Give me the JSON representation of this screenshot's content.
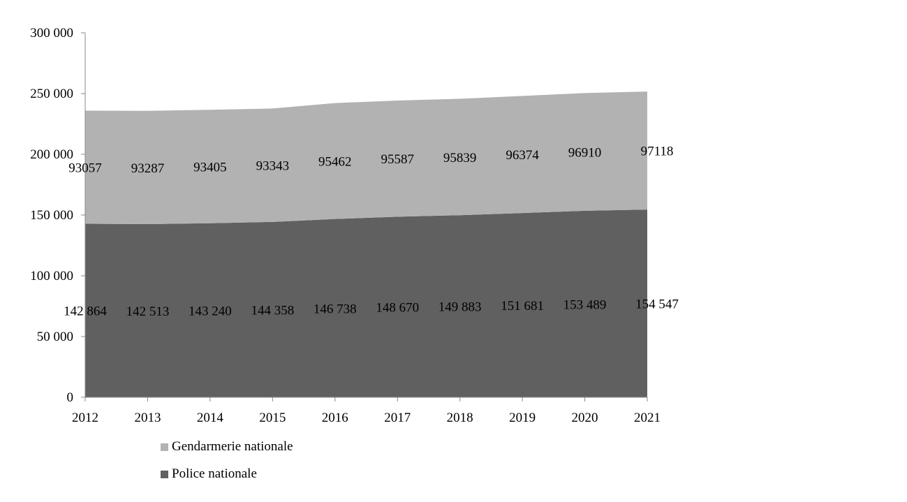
{
  "chart_data": {
    "type": "area",
    "stacked": true,
    "categories": [
      "2012",
      "2013",
      "2014",
      "2015",
      "2016",
      "2017",
      "2018",
      "2019",
      "2020",
      "2021"
    ],
    "series": [
      {
        "name": "Police nationale",
        "color": "#606060",
        "values": [
          142864,
          142513,
          143240,
          144358,
          146738,
          148670,
          149883,
          151681,
          153489,
          154547
        ],
        "labels": [
          "142 864",
          "142 513",
          "143 240",
          "144 358",
          "146 738",
          "148 670",
          "149 883",
          "151 681",
          "153 489",
          "154 547"
        ]
      },
      {
        "name": "Gendarmerie nationale",
        "color": "#b2b2b2",
        "values": [
          93057,
          93287,
          93405,
          93343,
          95462,
          95587,
          95839,
          96374,
          96910,
          97118
        ],
        "labels": [
          "93057",
          "93287",
          "93405",
          "93343",
          "95462",
          "95587",
          "95839",
          "96374",
          "96910",
          "97118"
        ]
      }
    ],
    "ylim": [
      0,
      300000
    ],
    "yticks": [
      0,
      50000,
      100000,
      150000,
      200000,
      250000,
      300000
    ],
    "ytick_labels": [
      "0",
      "50 000",
      "100 000",
      "150 000",
      "200 000",
      "250 000",
      "300 000"
    ],
    "grid": false,
    "legend_position": "bottom-left",
    "legend": [
      "Gendarmerie nationale",
      "Police nationale"
    ]
  }
}
